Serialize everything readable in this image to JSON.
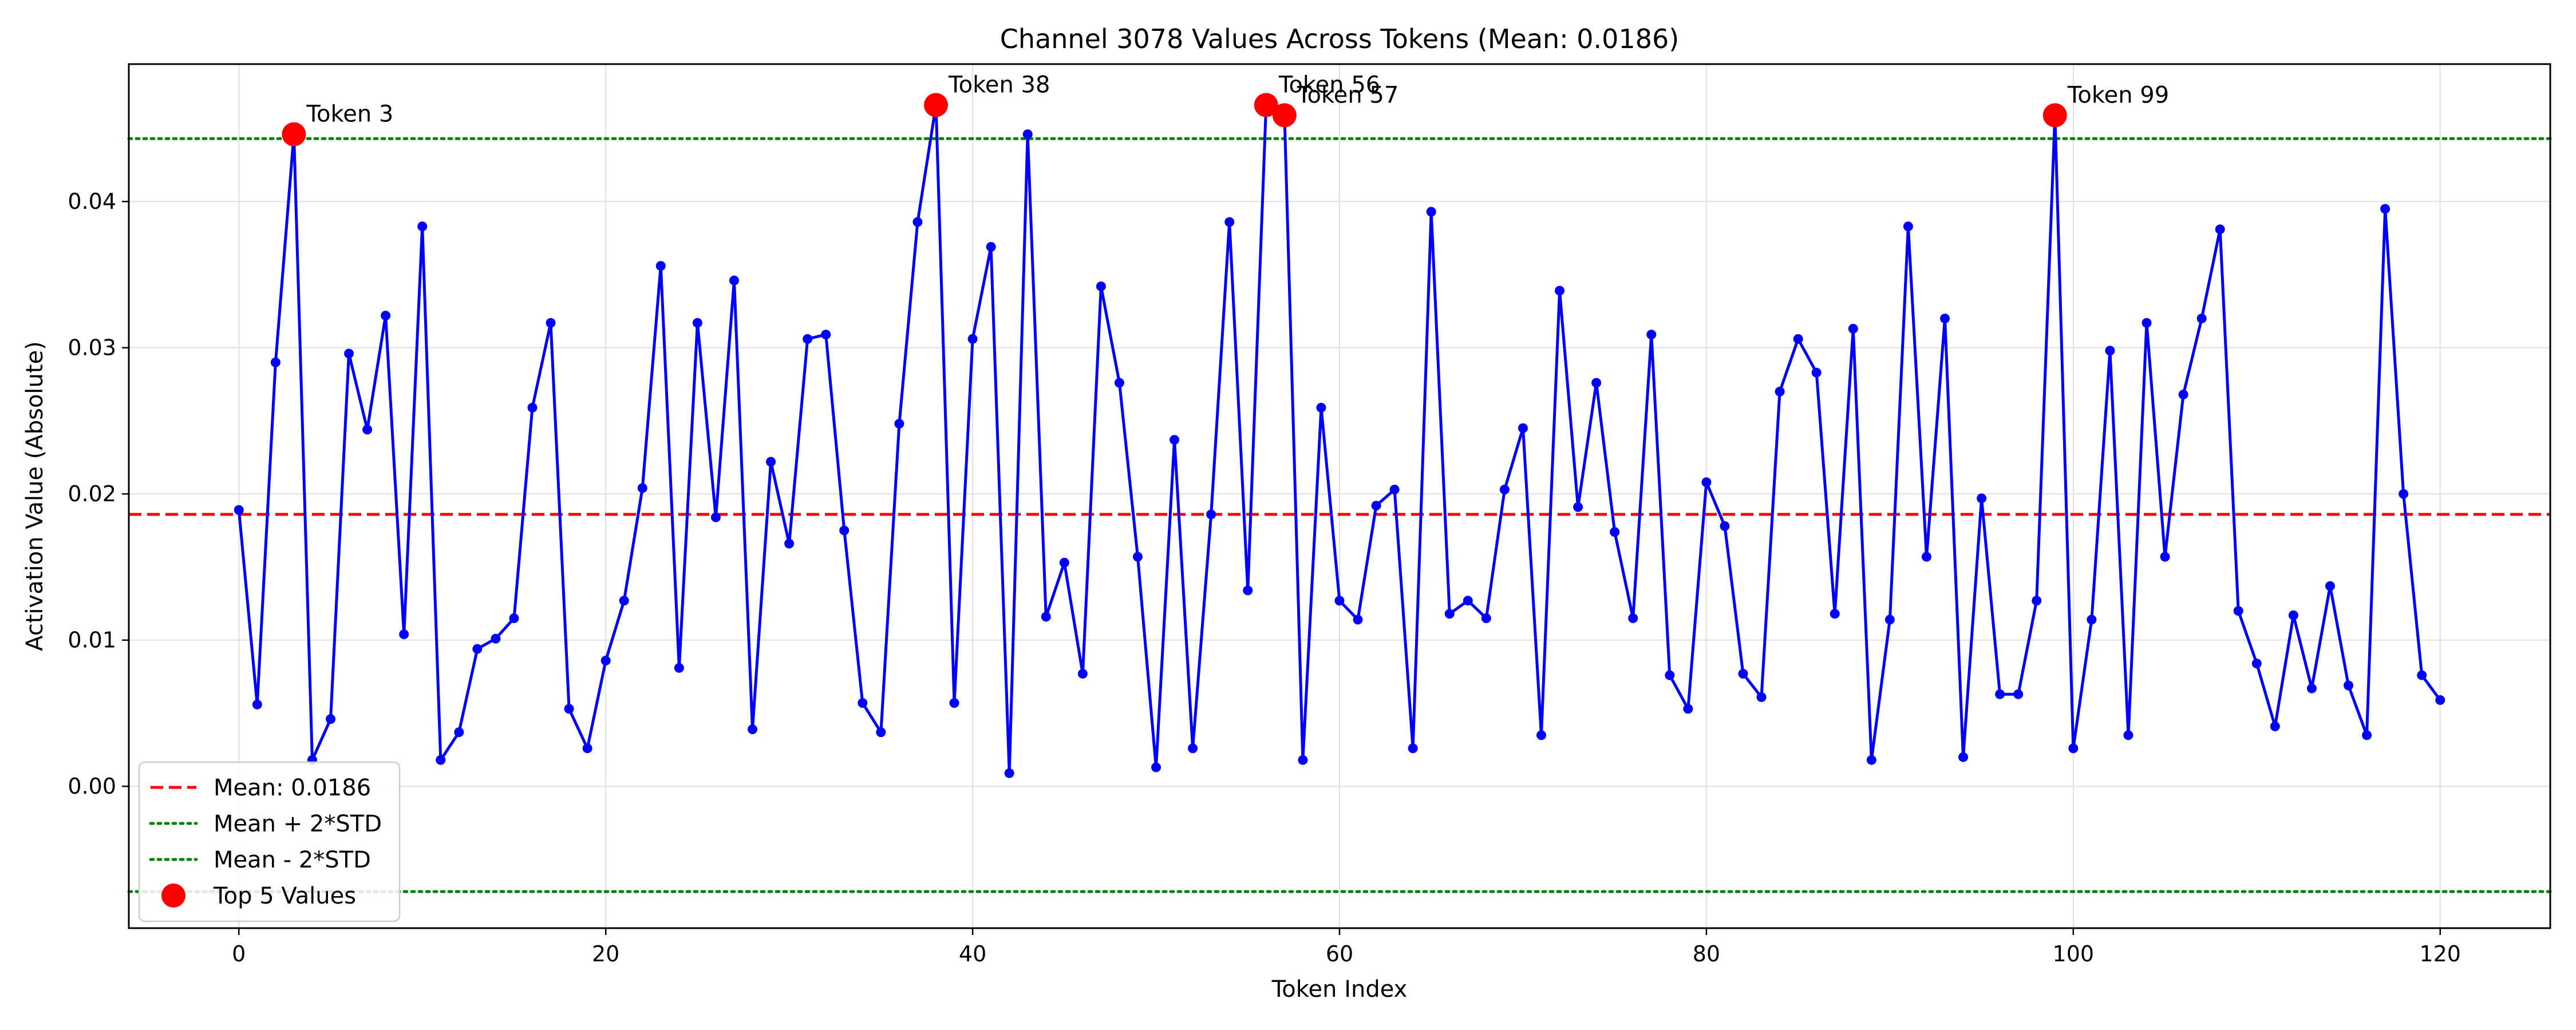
{
  "chart_data": {
    "type": "line",
    "title": "Channel 3078 Values Across Tokens (Mean: 0.0186)",
    "xlabel": "Token Index",
    "ylabel": "Activation Value (Absolute)",
    "xlim": [
      -6,
      126
    ],
    "ylim": [
      -0.0097,
      0.0494
    ],
    "xticks": [
      0,
      20,
      40,
      60,
      80,
      100,
      120
    ],
    "yticks": [
      0.0,
      0.01,
      0.02,
      0.03,
      0.04
    ],
    "ytick_labels": [
      "0.00",
      "0.01",
      "0.02",
      "0.03",
      "0.04"
    ],
    "grid": true,
    "legend_position": "lower-left",
    "colors": {
      "series": "#0000ff",
      "mean": "#ff0000",
      "std": "#008000",
      "top": "#ff0000",
      "grid": "#e0e0e0"
    },
    "series": [
      {
        "values": [
          0.0189,
          0.0056,
          0.029,
          0.0446,
          0.0018,
          0.0046,
          0.0296,
          0.0244,
          0.0322,
          0.0104,
          0.0383,
          0.0018,
          0.0037,
          0.0094,
          0.0101,
          0.0115,
          0.0259,
          0.0317,
          0.0053,
          0.0026,
          0.0086,
          0.0127,
          0.0204,
          0.0356,
          0.0081,
          0.0317,
          0.0184,
          0.0346,
          0.0039,
          0.0222,
          0.0166,
          0.0306,
          0.0309,
          0.0175,
          0.0057,
          0.0037,
          0.0248,
          0.0386,
          0.0466,
          0.0057,
          0.0306,
          0.0369,
          0.0009,
          0.0446,
          0.0116,
          0.0153,
          0.0077,
          0.0342,
          0.0276,
          0.0157,
          0.0013,
          0.0237,
          0.0026,
          0.0186,
          0.0386,
          0.0134,
          0.0466,
          0.0459,
          0.0018,
          0.0259,
          0.0127,
          0.0114,
          0.0192,
          0.0203,
          0.0026,
          0.0393,
          0.0118,
          0.0127,
          0.0115,
          0.0203,
          0.0245,
          0.0035,
          0.0339,
          0.0191,
          0.0276,
          0.0174,
          0.0115,
          0.0309,
          0.0076,
          0.0053,
          0.0208,
          0.0178,
          0.0077,
          0.0061,
          0.027,
          0.0306,
          0.0283,
          0.0118,
          0.0313,
          0.0018,
          0.0114,
          0.0383,
          0.0157,
          0.032,
          0.002,
          0.0197,
          0.0063,
          0.0063,
          0.0127,
          0.0459,
          0.0026,
          0.0114,
          0.0298,
          0.0035,
          0.0317,
          0.0157,
          0.0268,
          0.032,
          0.0381,
          0.012,
          0.0084,
          0.0041,
          0.0117,
          0.0067,
          0.0137,
          0.0069,
          0.0035,
          0.0395,
          0.02,
          0.0076,
          0.0059
        ]
      }
    ],
    "mean": 0.0186,
    "mean_plus_2std": 0.0443,
    "mean_minus_2std": -0.0072,
    "top_points": [
      {
        "x": 3,
        "y": 0.0446,
        "label": "Token 3"
      },
      {
        "x": 38,
        "y": 0.0466,
        "label": "Token 38"
      },
      {
        "x": 56,
        "y": 0.0466,
        "label": "Token 56"
      },
      {
        "x": 57,
        "y": 0.0459,
        "label": "Token 57"
      },
      {
        "x": 99,
        "y": 0.0459,
        "label": "Token 99"
      }
    ],
    "legend": [
      {
        "label": "Mean: 0.0186",
        "style": "dashed",
        "color": "#ff0000"
      },
      {
        "label": "Mean + 2*STD",
        "style": "dotted",
        "color": "#008000"
      },
      {
        "label": "Mean - 2*STD",
        "style": "dotted",
        "color": "#008000"
      },
      {
        "label": "Top 5 Values",
        "style": "marker",
        "color": "#ff0000"
      }
    ]
  }
}
